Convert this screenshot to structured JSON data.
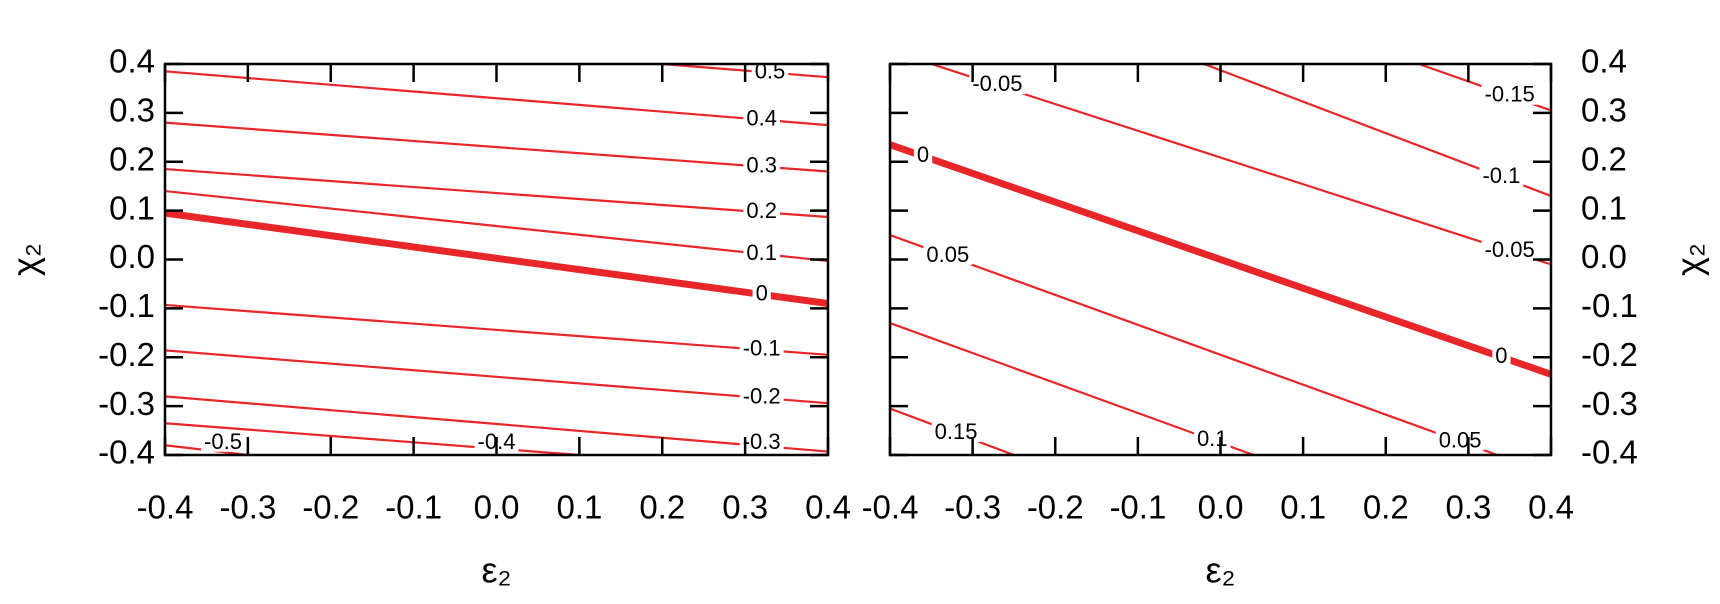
{
  "chart_data": [
    {
      "type": "contour",
      "xlabel": "ε₂",
      "ylabel": "χ₂",
      "y_axis_side": "left",
      "color": "#e8262a",
      "bold_level": 0,
      "xlim": [
        -0.4,
        0.4
      ],
      "ylim": [
        -0.4,
        0.4
      ],
      "xticks": [
        -0.4,
        -0.3,
        -0.2,
        -0.1,
        {
          "value": 0,
          "label": "0.0"
        },
        0.1,
        0.2,
        0.3,
        0.4
      ],
      "yticks": [
        -0.4,
        -0.3,
        -0.2,
        -0.1,
        {
          "value": 0,
          "label": "0.0"
        },
        0.1,
        0.2,
        0.3,
        0.4
      ],
      "series": [
        {
          "level": 0.5,
          "x": [
            0.2,
            0.4
          ],
          "values": [
            0.4,
            0.373
          ]
        },
        {
          "level": 0.4,
          "x": [
            -0.4,
            0.4
          ],
          "values": [
            0.385,
            0.275
          ]
        },
        {
          "level": 0.3,
          "x": [
            -0.4,
            0.4
          ],
          "values": [
            0.28,
            0.18
          ]
        },
        {
          "level": 0.2,
          "x": [
            -0.4,
            0.4
          ],
          "values": [
            0.185,
            0.087
          ]
        },
        {
          "level": 0.1,
          "x": [
            -0.4,
            0.4
          ],
          "values": [
            0.14,
            -0.003
          ]
        },
        {
          "level": 0,
          "x": [
            -0.4,
            0.4
          ],
          "values": [
            0.095,
            -0.09
          ]
        },
        {
          "level": -0.1,
          "x": [
            -0.4,
            0.4
          ],
          "values": [
            -0.093,
            -0.195
          ]
        },
        {
          "level": -0.2,
          "x": [
            -0.4,
            0.4
          ],
          "values": [
            -0.186,
            -0.294
          ]
        },
        {
          "level": -0.3,
          "x": [
            -0.4,
            0.4
          ],
          "values": [
            -0.28,
            -0.393
          ]
        },
        {
          "level": -0.4,
          "x": [
            -0.4,
            0.1
          ],
          "values": [
            -0.335,
            -0.4
          ]
        },
        {
          "level": -0.5,
          "x": [
            -0.4,
            -0.3
          ],
          "values": [
            -0.38,
            -0.4
          ]
        }
      ]
    },
    {
      "type": "contour",
      "xlabel": "ε₂",
      "ylabel": "χ₂",
      "y_axis_side": "right",
      "color": "#e8262a",
      "bold_level": 0,
      "xlim": [
        -0.4,
        0.4
      ],
      "ylim": [
        -0.4,
        0.4
      ],
      "xticks": [
        -0.4,
        -0.3,
        -0.2,
        -0.1,
        {
          "value": 0,
          "label": "0.0"
        },
        0.1,
        0.2,
        0.3,
        0.4
      ],
      "yticks": [
        -0.4,
        -0.3,
        -0.2,
        -0.1,
        {
          "value": 0,
          "label": "0.0"
        },
        0.1,
        0.2,
        0.3,
        0.4
      ],
      "series": [
        {
          "level": -0.15,
          "x": [
            0.24,
            0.4
          ],
          "values": [
            0.4,
            0.305
          ]
        },
        {
          "level": -0.1,
          "x": [
            -0.02,
            0.4
          ],
          "values": [
            0.4,
            0.13
          ]
        },
        {
          "level": -0.05,
          "x": [
            -0.35,
            0.4
          ],
          "values": [
            0.4,
            -0.01
          ]
        },
        {
          "level": 0,
          "x": [
            -0.4,
            0.4
          ],
          "values": [
            0.235,
            -0.235
          ]
        },
        {
          "level": 0.05,
          "x": [
            -0.4,
            0.335
          ],
          "values": [
            0.05,
            -0.4
          ]
        },
        {
          "level": 0.1,
          "x": [
            -0.4,
            0.04
          ],
          "values": [
            -0.13,
            -0.4
          ]
        },
        {
          "level": 0.15,
          "x": [
            -0.4,
            -0.25
          ],
          "values": [
            -0.305,
            -0.4
          ]
        }
      ]
    }
  ]
}
